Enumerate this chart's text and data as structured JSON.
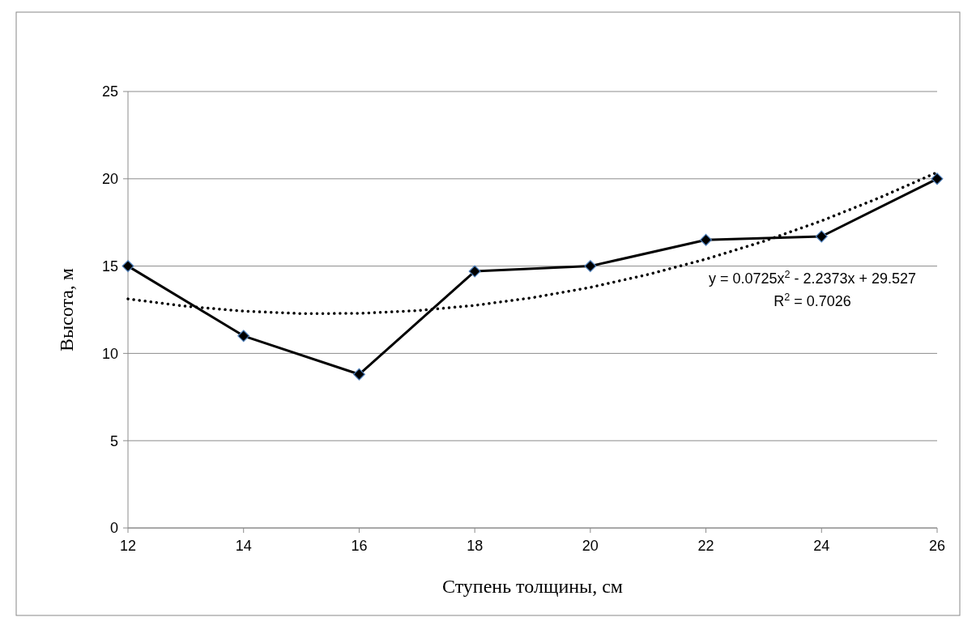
{
  "chart_data": {
    "type": "line",
    "xlabel": "Ступень толщины, см",
    "ylabel": "Высота, м",
    "x": [
      12,
      14,
      16,
      18,
      20,
      22,
      24,
      26
    ],
    "series": [
      {
        "color": "#000000",
        "marker": "diamond",
        "line_style": "solid",
        "values": [
          15,
          11,
          8.8,
          14.7,
          15,
          16.5,
          16.7,
          20
        ]
      },
      {
        "type": "line",
        "color": "#000000",
        "marker": "none",
        "line_style": "dotted",
        "x": [
          12,
          13,
          14,
          15,
          16,
          17,
          18,
          19,
          20,
          21,
          22,
          23,
          24,
          25,
          26
        ],
        "values": [
          13.12,
          12.7,
          12.42,
          12.28,
          12.29,
          12.45,
          12.75,
          13.19,
          13.78,
          14.52,
          15.4,
          16.42,
          17.59,
          18.91,
          20.37
        ]
      }
    ],
    "xlim": [
      12,
      26
    ],
    "xticks": [
      12,
      14,
      16,
      18,
      20,
      22,
      24,
      26
    ],
    "ylim": [
      0,
      25
    ],
    "yticks": [
      0,
      5,
      10,
      15,
      20,
      25
    ],
    "grid": "y",
    "annotations": [
      "y = 0.0725x$^{2}$ - 2.2373x + 29.527",
      "R$^{2}$ = 0.7026"
    ]
  }
}
